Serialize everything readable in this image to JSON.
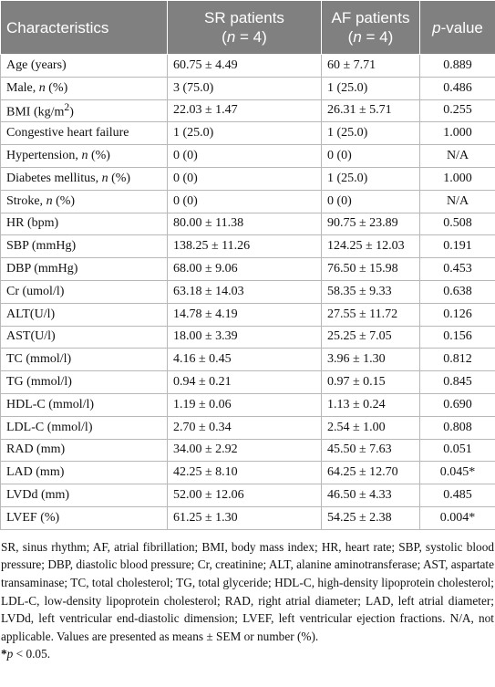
{
  "table": {
    "header": [
      [
        "Characteristics"
      ],
      [
        "SR patients",
        "(",
        "n",
        " = 4)"
      ],
      [
        "AF patients",
        "(",
        "n",
        " = 4)"
      ],
      [
        "p",
        "-value"
      ]
    ],
    "rows": [
      [
        [
          "Age (years)"
        ],
        "60.75 ± 4.49",
        "60 ± 7.71",
        "0.889"
      ],
      [
        [
          "Male, ",
          "n",
          " (%)"
        ],
        "3 (75.0)",
        "1 (25.0)",
        "0.486"
      ],
      [
        [
          "BMI (kg/m",
          "2",
          ")"
        ],
        "22.03 ± 1.47",
        "26.31 ± 5.71",
        "0.255"
      ],
      [
        [
          "Congestive heart failure"
        ],
        "1 (25.0)",
        "1 (25.0)",
        "1.000"
      ],
      [
        [
          "Hypertension, ",
          "n",
          " (%)"
        ],
        "0 (0)",
        "0 (0)",
        "N/A"
      ],
      [
        [
          "Diabetes mellitus, ",
          "n",
          " (%)"
        ],
        "0 (0)",
        "1 (25.0)",
        "1.000"
      ],
      [
        [
          "Stroke, ",
          "n",
          " (%)"
        ],
        "0 (0)",
        "0 (0)",
        "N/A"
      ],
      [
        [
          "HR (bpm)"
        ],
        "80.00 ± 11.38",
        "90.75 ± 23.89",
        "0.508"
      ],
      [
        [
          "SBP (mmHg)"
        ],
        "138.25 ± 11.26",
        "124.25 ± 12.03",
        "0.191"
      ],
      [
        [
          "DBP (mmHg)"
        ],
        "68.00 ± 9.06",
        "76.50 ± 15.98",
        "0.453"
      ],
      [
        [
          "Cr (umol/l)"
        ],
        "63.18 ± 14.03",
        "58.35 ± 9.33",
        "0.638"
      ],
      [
        [
          "ALT(U/l)"
        ],
        "14.78 ± 4.19",
        "27.55 ± 11.72",
        "0.126"
      ],
      [
        [
          "AST(U/l)"
        ],
        "18.00 ± 3.39",
        "25.25 ± 7.05",
        "0.156"
      ],
      [
        [
          "TC (mmol/l)"
        ],
        "4.16 ± 0.45",
        "3.96 ± 1.30",
        "0.812"
      ],
      [
        [
          "TG (mmol/l)"
        ],
        "0.94 ± 0.21",
        "0.97 ± 0.15",
        "0.845"
      ],
      [
        [
          "HDL-C (mmol/l)"
        ],
        "1.19 ± 0.06",
        "1.13 ± 0.24",
        "0.690"
      ],
      [
        [
          "LDL-C (mmol/l)"
        ],
        "2.70 ± 0.34",
        "2.54 ± 1.00",
        "0.808"
      ],
      [
        [
          "RAD (mm)"
        ],
        "34.00 ± 2.92",
        "45.50 ± 7.63",
        "0.051"
      ],
      [
        [
          "LAD (mm)"
        ],
        "42.25 ± 8.10",
        "64.25 ± 12.70",
        "0.045*"
      ],
      [
        [
          "LVDd (mm)"
        ],
        "52.00 ± 12.06",
        "46.50 ± 4.33",
        "0.485"
      ],
      [
        [
          "LVEF (%)"
        ],
        "61.25 ± 1.30",
        "54.25 ± 2.38",
        "0.004*"
      ]
    ]
  },
  "footnote": {
    "abbreviations": "SR, sinus rhythm; AF, atrial fibrillation; BMI, body mass index; HR, heart rate; SBP, systolic blood pressure; DBP, diastolic blood pressure; Cr, creatinine; ALT, alanine aminotransferase; AST, aspartate transaminase; TC, total cholesterol; TG, total glyceride; HDL-C, high-density lipoprotein cholesterol; LDL-C, low-density lipoprotein cholesterol; RAD, right atrial diameter; LAD, left atrial diameter; LVDd, left ventricular end-diastolic dimension; LVEF, left ventricular ejection fractions. N/A, not applicable. Values are presented as means ± SEM or number (%).",
    "significance": [
      "*",
      "p",
      " < 0.05."
    ]
  }
}
